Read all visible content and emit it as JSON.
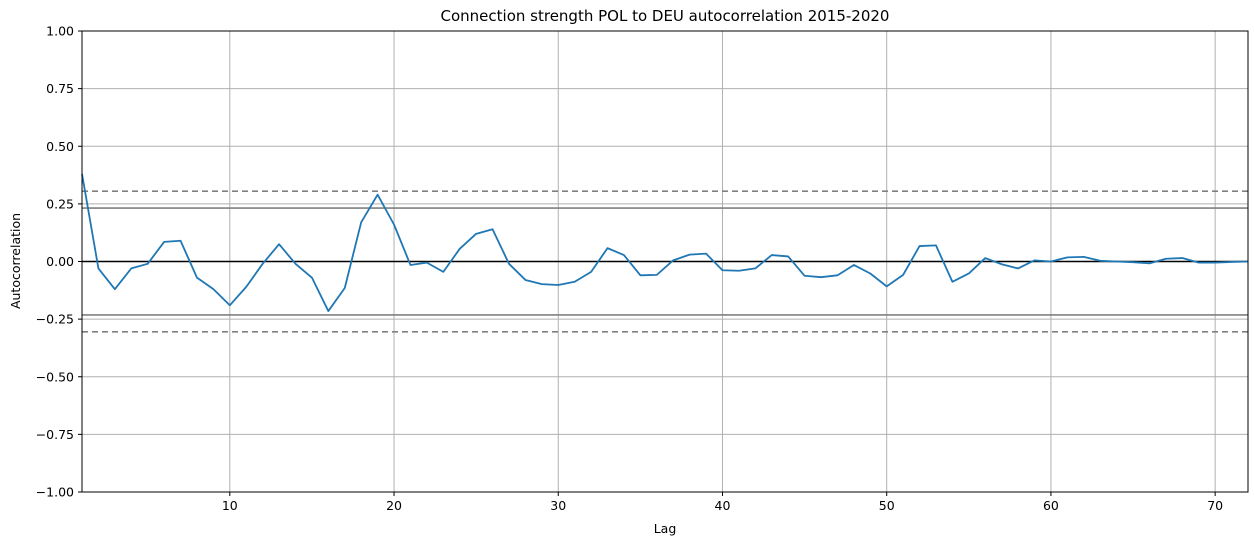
{
  "chart_data": {
    "type": "line",
    "title": "Connection strength POL to DEU autocorrelation 2015-2020",
    "xlabel": "Lag",
    "ylabel": "Autocorrelation",
    "xlim": [
      1,
      72
    ],
    "ylim": [
      -1.0,
      1.0
    ],
    "grid": true,
    "x_ticks": [
      10,
      20,
      30,
      40,
      50,
      60,
      70
    ],
    "y_ticks": [
      1.0,
      0.75,
      0.5,
      0.25,
      0.0,
      -0.25,
      -0.5,
      -0.75,
      -1.0
    ],
    "x_tick_labels": [
      "10",
      "20",
      "30",
      "40",
      "50",
      "60",
      "70"
    ],
    "y_tick_labels": [
      "1.00",
      "0.75",
      "0.50",
      "0.25",
      "0.00",
      "−0.25",
      "−0.50",
      "−0.75",
      "−1.00"
    ],
    "reference_lines": {
      "zero": 0.0,
      "conf95": [
        0.232,
        -0.232
      ],
      "conf99": [
        0.305,
        -0.305
      ]
    },
    "colors": {
      "series": "#1f77b4",
      "zero_line": "#000000",
      "confidence": "#808080",
      "grid": "#b0b0b0"
    },
    "series": [
      {
        "x": [
          1,
          2,
          3,
          4,
          5,
          6,
          7,
          8,
          9,
          10,
          11,
          12,
          13,
          14,
          15,
          16,
          17,
          18,
          19,
          20,
          21,
          22,
          23,
          24,
          25,
          26,
          27,
          28,
          29,
          30,
          31,
          32,
          33,
          34,
          35,
          36,
          37,
          38,
          39,
          40,
          41,
          42,
          43,
          44,
          45,
          46,
          47,
          48,
          49,
          50,
          51,
          52,
          53,
          54,
          55,
          56,
          57,
          58,
          59,
          60,
          61,
          62,
          63,
          64,
          65,
          66,
          67,
          68,
          69,
          70,
          71,
          72
        ],
        "values": [
          0.38,
          -0.03,
          -0.12,
          -0.03,
          -0.01,
          0.085,
          0.09,
          -0.07,
          -0.12,
          -0.19,
          -0.11,
          -0.01,
          0.075,
          -0.01,
          -0.07,
          -0.215,
          -0.115,
          0.17,
          0.29,
          0.16,
          -0.015,
          -0.005,
          -0.045,
          0.055,
          0.12,
          0.14,
          -0.01,
          -0.08,
          -0.098,
          -0.102,
          -0.088,
          -0.045,
          0.058,
          0.028,
          -0.06,
          -0.058,
          0.005,
          0.03,
          0.034,
          -0.038,
          -0.04,
          -0.03,
          0.028,
          0.022,
          -0.062,
          -0.068,
          -0.06,
          -0.015,
          -0.052,
          -0.108,
          -0.058,
          0.067,
          0.07,
          -0.088,
          -0.052,
          0.015,
          -0.012,
          -0.03,
          0.005,
          0.0,
          0.018,
          0.02,
          0.003,
          0.0,
          -0.003,
          -0.008,
          0.012,
          0.015,
          -0.005,
          -0.005,
          -0.002,
          0.0
        ]
      }
    ]
  }
}
